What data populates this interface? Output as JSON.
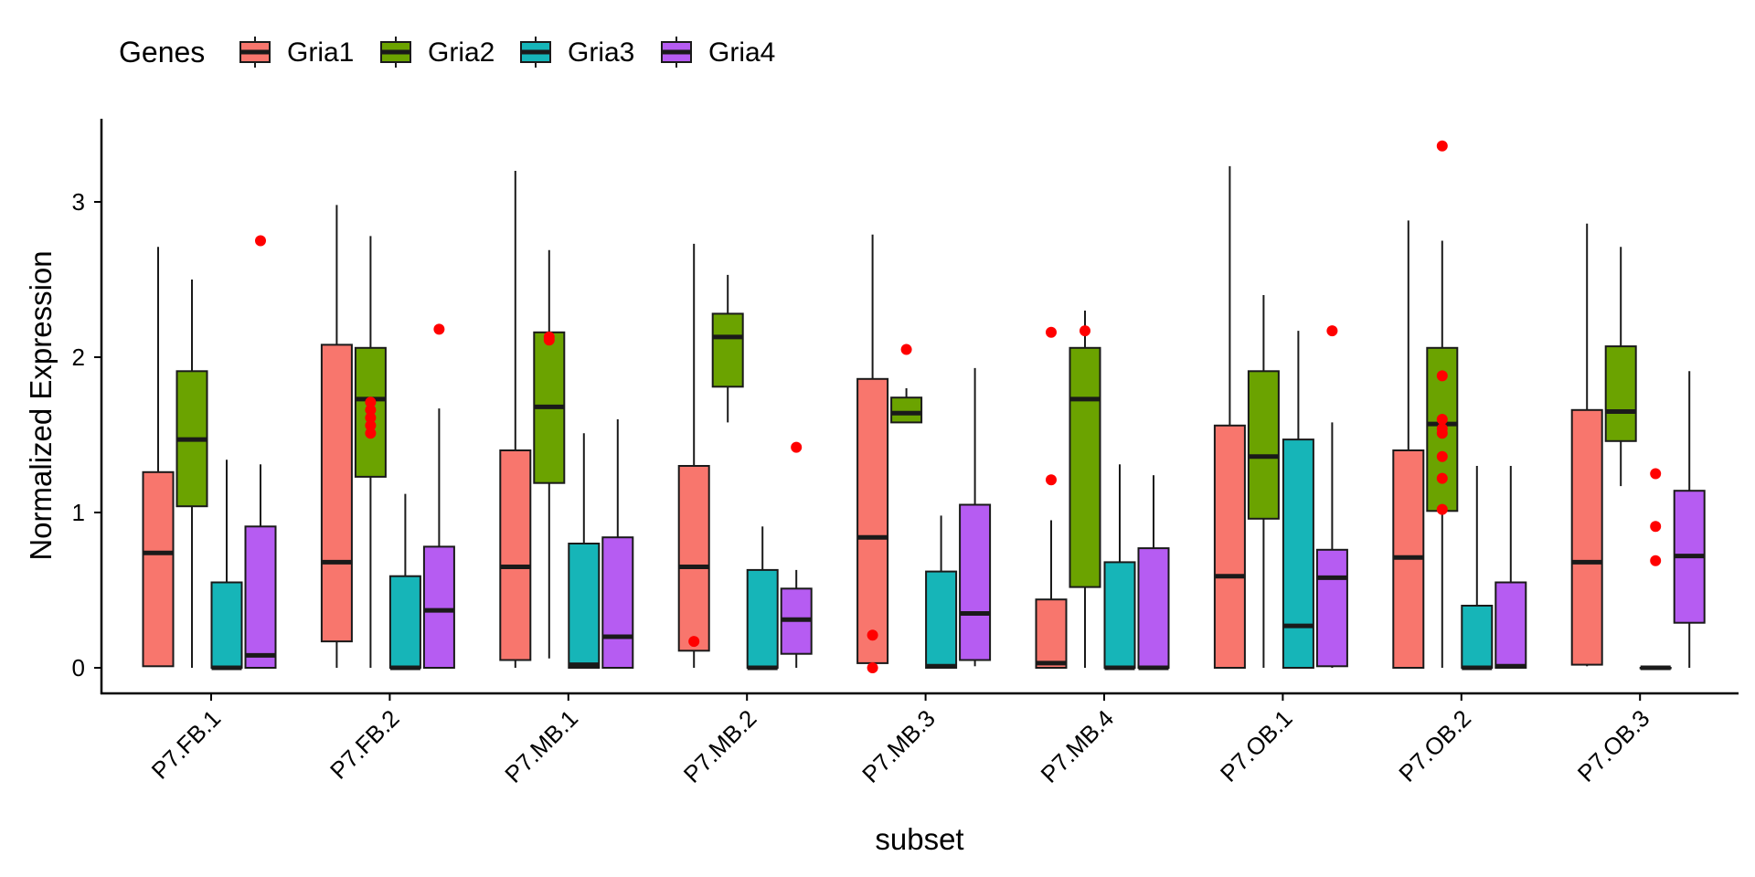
{
  "chart_data": {
    "type": "box",
    "title": "",
    "xlabel": "subset",
    "ylabel": "Normalized Expression",
    "ylim": [
      -0.17,
      3.55
    ],
    "yticks": [
      0,
      1,
      2,
      3
    ],
    "yticklabels": [
      "0",
      "1",
      "2",
      "3"
    ],
    "categories": [
      "P7.FB.1",
      "P7.FB.2",
      "P7.MB.1",
      "P7.MB.2",
      "P7.MB.3",
      "P7.MB.4",
      "P7.OB.1",
      "P7.OB.2",
      "P7.OB.3"
    ],
    "grid": false,
    "legend": {
      "title": "Genes",
      "position": "top-left"
    },
    "outlier_color": "#ff0000",
    "series": [
      {
        "name": "Gria1",
        "color": "#F8766D",
        "boxes": [
          {
            "whislo": 0.01,
            "q1": 0.01,
            "med": 0.74,
            "q3": 1.26,
            "whishi": 2.71,
            "outliers": []
          },
          {
            "whislo": 0.0,
            "q1": 0.17,
            "med": 0.68,
            "q3": 2.08,
            "whishi": 2.98,
            "outliers": []
          },
          {
            "whislo": 0.0,
            "q1": 0.05,
            "med": 0.65,
            "q3": 1.4,
            "whishi": 3.2,
            "outliers": []
          },
          {
            "whislo": 0.0,
            "q1": 0.11,
            "med": 0.65,
            "q3": 1.3,
            "whishi": 2.73,
            "outliers": [
              0.17
            ]
          },
          {
            "whislo": 0.02,
            "q1": 0.03,
            "med": 0.84,
            "q3": 1.86,
            "whishi": 2.79,
            "outliers": [
              0.21,
              0.0
            ]
          },
          {
            "whislo": 0.0,
            "q1": 0.0,
            "med": 0.03,
            "q3": 0.44,
            "whishi": 0.95,
            "outliers": [
              1.21,
              2.16
            ]
          },
          {
            "whislo": 0.0,
            "q1": 0.0,
            "med": 0.59,
            "q3": 1.56,
            "whishi": 3.23,
            "outliers": []
          },
          {
            "whislo": 0.0,
            "q1": 0.0,
            "med": 0.71,
            "q3": 1.4,
            "whishi": 2.88,
            "outliers": []
          },
          {
            "whislo": 0.01,
            "q1": 0.02,
            "med": 0.68,
            "q3": 1.66,
            "whishi": 2.86,
            "outliers": []
          }
        ]
      },
      {
        "name": "Gria2",
        "color": "#6BA300",
        "boxes": [
          {
            "whislo": 0.0,
            "q1": 1.04,
            "med": 1.47,
            "q3": 1.91,
            "whishi": 2.5,
            "outliers": []
          },
          {
            "whislo": 0.0,
            "q1": 1.23,
            "med": 1.73,
            "q3": 2.06,
            "whishi": 2.78,
            "outliers": [
              1.51,
              1.56,
              1.61,
              1.66,
              1.71
            ]
          },
          {
            "whislo": 0.06,
            "q1": 1.19,
            "med": 1.68,
            "q3": 2.16,
            "whishi": 2.69,
            "outliers": [
              2.11,
              2.13
            ]
          },
          {
            "whislo": 1.58,
            "q1": 1.81,
            "med": 2.13,
            "q3": 2.28,
            "whishi": 2.53,
            "outliers": []
          },
          {
            "whislo": 1.58,
            "q1": 1.58,
            "med": 1.64,
            "q3": 1.74,
            "whishi": 1.8,
            "outliers": [
              2.05
            ]
          },
          {
            "whislo": 0.0,
            "q1": 0.52,
            "med": 1.73,
            "q3": 2.06,
            "whishi": 2.3,
            "outliers": [
              2.17
            ]
          },
          {
            "whislo": 0.0,
            "q1": 0.96,
            "med": 1.36,
            "q3": 1.91,
            "whishi": 2.4,
            "outliers": []
          },
          {
            "whislo": 0.0,
            "q1": 1.01,
            "med": 1.57,
            "q3": 2.06,
            "whishi": 2.75,
            "outliers": [
              1.02,
              1.22,
              1.36,
              1.51,
              1.54,
              1.6,
              1.88,
              3.36
            ]
          },
          {
            "whislo": 1.17,
            "q1": 1.46,
            "med": 1.65,
            "q3": 2.07,
            "whishi": 2.71,
            "outliers": []
          }
        ]
      },
      {
        "name": "Gria3",
        "color": "#16B5B8",
        "boxes": [
          {
            "whislo": 0.0,
            "q1": 0.0,
            "med": 0.0,
            "q3": 0.55,
            "whishi": 1.34,
            "outliers": []
          },
          {
            "whislo": 0.0,
            "q1": 0.0,
            "med": 0.0,
            "q3": 0.59,
            "whishi": 1.12,
            "outliers": []
          },
          {
            "whislo": 0.0,
            "q1": 0.0,
            "med": 0.02,
            "q3": 0.8,
            "whishi": 1.51,
            "outliers": []
          },
          {
            "whislo": 0.0,
            "q1": 0.0,
            "med": 0.0,
            "q3": 0.63,
            "whishi": 0.91,
            "outliers": []
          },
          {
            "whislo": 0.0,
            "q1": 0.0,
            "med": 0.01,
            "q3": 0.62,
            "whishi": 0.98,
            "outliers": []
          },
          {
            "whislo": 0.0,
            "q1": 0.0,
            "med": 0.0,
            "q3": 0.68,
            "whishi": 1.31,
            "outliers": []
          },
          {
            "whislo": 0.0,
            "q1": 0.0,
            "med": 0.27,
            "q3": 1.47,
            "whishi": 2.17,
            "outliers": []
          },
          {
            "whislo": 0.0,
            "q1": 0.0,
            "med": 0.0,
            "q3": 0.4,
            "whishi": 1.3,
            "outliers": []
          },
          {
            "whislo": 0.0,
            "q1": 0.0,
            "med": 0.0,
            "q3": 0.0,
            "whishi": 0.0,
            "outliers": [
              0.69,
              0.91,
              1.25
            ]
          }
        ]
      },
      {
        "name": "Gria4",
        "color": "#B65CF2",
        "boxes": [
          {
            "whislo": 0.0,
            "q1": 0.0,
            "med": 0.08,
            "q3": 0.91,
            "whishi": 1.31,
            "outliers": [
              2.75
            ]
          },
          {
            "whislo": 0.0,
            "q1": 0.0,
            "med": 0.37,
            "q3": 0.78,
            "whishi": 1.67,
            "outliers": [
              2.18
            ]
          },
          {
            "whislo": 0.0,
            "q1": 0.0,
            "med": 0.2,
            "q3": 0.84,
            "whishi": 1.6,
            "outliers": []
          },
          {
            "whislo": 0.0,
            "q1": 0.09,
            "med": 0.31,
            "q3": 0.51,
            "whishi": 0.63,
            "outliers": [
              1.42
            ]
          },
          {
            "whislo": 0.01,
            "q1": 0.05,
            "med": 0.35,
            "q3": 1.05,
            "whishi": 1.93,
            "outliers": []
          },
          {
            "whislo": 0.0,
            "q1": 0.0,
            "med": 0.0,
            "q3": 0.77,
            "whishi": 1.24,
            "outliers": []
          },
          {
            "whislo": 0.0,
            "q1": 0.01,
            "med": 0.58,
            "q3": 0.76,
            "whishi": 1.58,
            "outliers": [
              2.17
            ]
          },
          {
            "whislo": 0.0,
            "q1": 0.0,
            "med": 0.01,
            "q3": 0.55,
            "whishi": 1.3,
            "outliers": []
          },
          {
            "whislo": 0.0,
            "q1": 0.29,
            "med": 0.72,
            "q3": 1.14,
            "whishi": 1.91,
            "outliers": []
          }
        ]
      }
    ]
  }
}
